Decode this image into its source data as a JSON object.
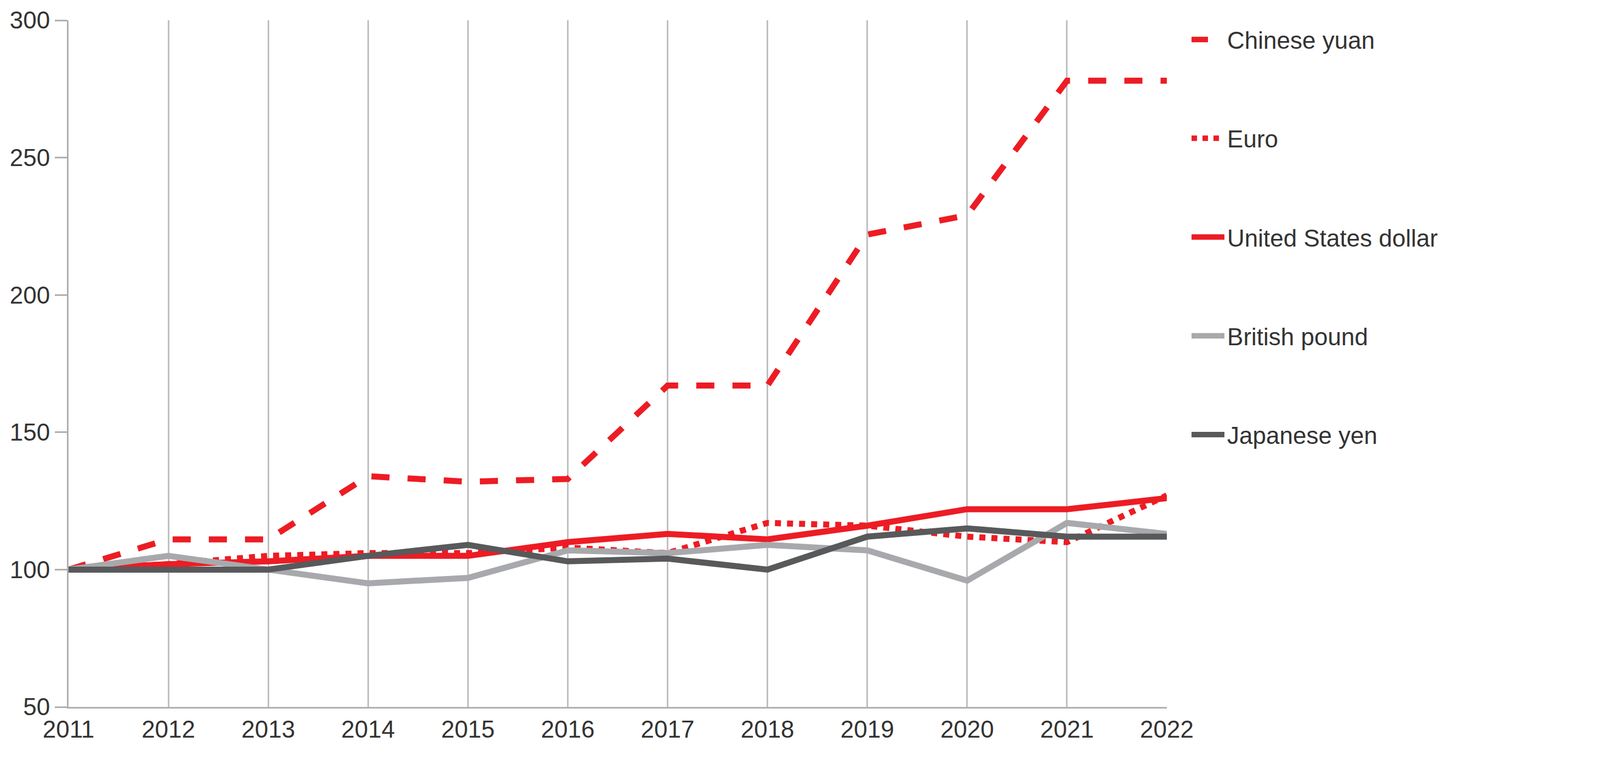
{
  "chart_data": {
    "type": "line",
    "x": [
      2011,
      2012,
      2013,
      2014,
      2015,
      2016,
      2017,
      2018,
      2019,
      2020,
      2021,
      2022
    ],
    "series": [
      {
        "name": "Chinese yuan",
        "color": "#ed1c24",
        "line_style": "dash",
        "values": [
          100,
          111,
          111,
          134,
          132,
          133,
          167,
          167,
          222,
          229,
          278,
          278
        ]
      },
      {
        "name": "Euro",
        "color": "#ed1c24",
        "line_style": "dot",
        "values": [
          100,
          102,
          105,
          106,
          106,
          108,
          106,
          117,
          116,
          112,
          110,
          127
        ]
      },
      {
        "name": "United States dollar",
        "color": "#ed1c24",
        "line_style": "solid",
        "values": [
          100,
          102,
          103,
          105,
          105,
          110,
          113,
          111,
          116,
          122,
          122,
          126
        ]
      },
      {
        "name": "British pound",
        "color": "#a7a9ac",
        "line_style": "solid",
        "values": [
          100,
          105,
          100,
          95,
          97,
          107,
          106,
          109,
          107,
          96,
          117,
          113
        ]
      },
      {
        "name": "Japanese yen",
        "color": "#58595b",
        "line_style": "solid",
        "values": [
          100,
          100,
          100,
          105,
          109,
          103,
          104,
          100,
          112,
          115,
          112,
          112
        ]
      }
    ],
    "xlim": [
      2011,
      2022
    ],
    "xticks": [
      2011,
      2012,
      2013,
      2014,
      2015,
      2016,
      2017,
      2018,
      2019,
      2020,
      2021,
      2022
    ],
    "ylim": [
      50,
      300
    ],
    "yticks": [
      50,
      100,
      150,
      200,
      250,
      300
    ],
    "grid": "x",
    "legend": "right"
  }
}
